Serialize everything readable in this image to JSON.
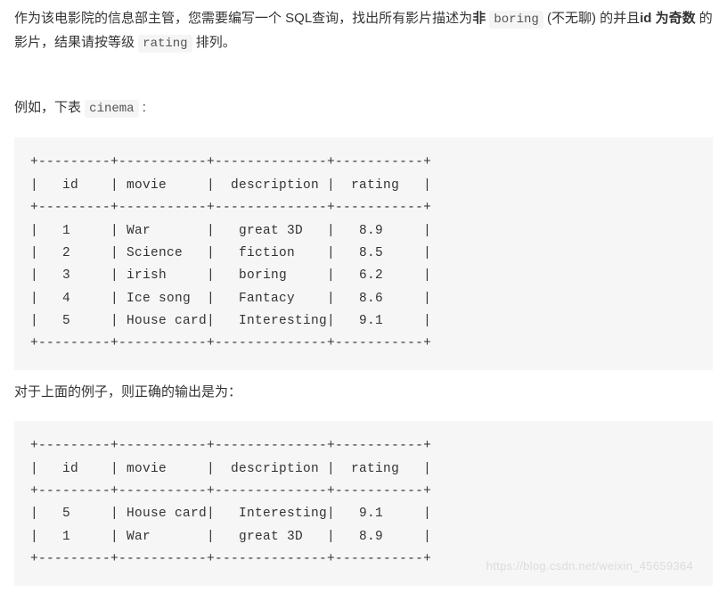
{
  "intro": {
    "line1_pre": "作为该电影院的信息部主管，您需要编写一个 SQL查询，找出所有影片描述为",
    "bold_not": "非",
    "code_boring": "boring",
    "line1_post": " (不无聊) 的并且",
    "bold_id_odd": "id 为奇数",
    "line2_mid": " 的影片，结果请按等级 ",
    "code_rating": "rating",
    "line2_end": " 排列。"
  },
  "example_label_pre": "例如，下表 ",
  "example_code": "cinema",
  "example_label_post": " :",
  "table1_lines": [
    "+---------+-----------+--------------+-----------+",
    "|   id    | movie     |  description |  rating   |",
    "+---------+-----------+--------------+-----------+",
    "|   1     | War       |   great 3D   |   8.9     |",
    "|   2     | Science   |   fiction    |   8.5     |",
    "|   3     | irish     |   boring     |   6.2     |",
    "|   4     | Ice song  |   Fantacy    |   8.6     |",
    "|   5     | House card|   Interesting|   9.1     |",
    "+---------+-----------+--------------+-----------+"
  ],
  "result_label": "对于上面的例子，则正确的输出是为：",
  "table2_lines": [
    "+---------+-----------+--------------+-----------+",
    "|   id    | movie     |  description |  rating   |",
    "+---------+-----------+--------------+-----------+",
    "|   5     | House card|   Interesting|   9.1     |",
    "|   1     | War       |   great 3D   |   8.9     |",
    "+---------+-----------+--------------+-----------+"
  ],
  "watermark": "https://blog.csdn.net/weixin_45659364",
  "colors": {
    "text": "#333333",
    "code_bg": "#f5f5f5",
    "pre_bg": "#f6f6f6",
    "watermark": "#dcdcdc"
  }
}
